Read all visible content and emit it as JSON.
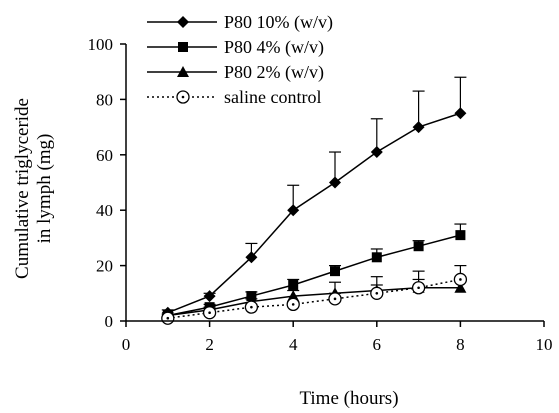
{
  "chart_data": {
    "type": "line",
    "title": "",
    "xlabel": "Time (hours)",
    "ylabel": [
      "Cumulative triglyceride",
      "in lymph (mg)"
    ],
    "xlim": [
      0,
      10
    ],
    "ylim": [
      0,
      100
    ],
    "x_ticks": [
      0,
      2,
      4,
      6,
      8,
      10
    ],
    "y_ticks": [
      0,
      20,
      40,
      60,
      80,
      100
    ],
    "grid": false,
    "legend_position": "top-left",
    "series": [
      {
        "name": "P80 10% (w/v)",
        "marker": "diamond",
        "line": "solid",
        "x": [
          1,
          2,
          3,
          4,
          5,
          6,
          7,
          8
        ],
        "y": [
          3,
          9,
          23,
          40,
          50,
          61,
          70,
          75
        ],
        "error": [
          1,
          1,
          5,
          9,
          11,
          12,
          13,
          13
        ]
      },
      {
        "name": "P80 4% (w/v)",
        "marker": "square",
        "line": "solid",
        "x": [
          1,
          2,
          3,
          4,
          5,
          6,
          7,
          8
        ],
        "y": [
          2,
          5,
          9,
          13,
          18,
          23,
          27,
          31
        ],
        "error": [
          0.5,
          1,
          1.5,
          2,
          2,
          3,
          2,
          4
        ]
      },
      {
        "name": "P80 2% (w/v)",
        "marker": "triangle",
        "line": "solid",
        "x": [
          1,
          2,
          3,
          4,
          5,
          6,
          7,
          8
        ],
        "y": [
          2,
          4,
          7,
          9,
          10,
          11,
          12,
          12
        ],
        "error": [
          0.5,
          1,
          1,
          2,
          4,
          5,
          6,
          3
        ]
      },
      {
        "name": "saline control",
        "marker": "circle-open",
        "line": "dotted",
        "x": [
          1,
          2,
          3,
          4,
          5,
          6,
          7,
          8
        ],
        "y": [
          1,
          3,
          5,
          6,
          8,
          10,
          12,
          15
        ],
        "error": [
          0.5,
          1,
          1,
          1,
          2,
          3,
          3,
          5
        ]
      }
    ]
  }
}
